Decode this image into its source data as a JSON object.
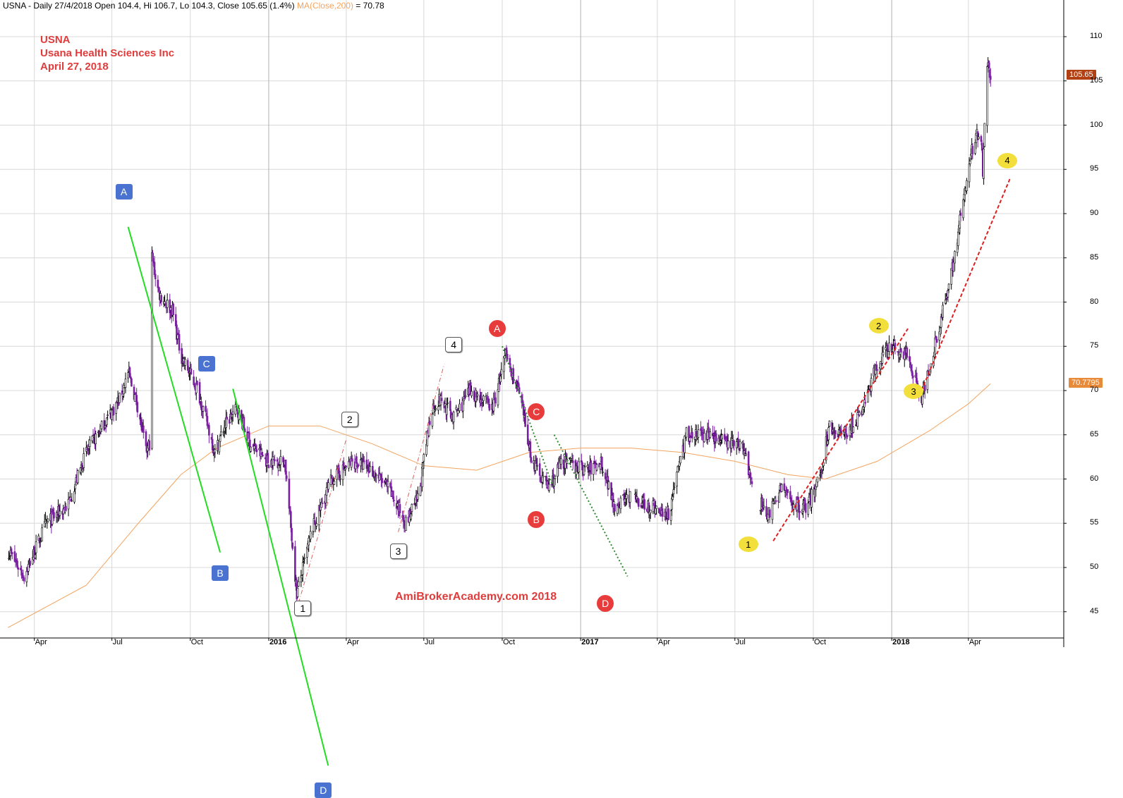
{
  "header": {
    "main_text": "USNA - Daily 27/4/2018 Open 104.4, Hi 106.7, Lo 104.3, Close 105.65 (1.4%)",
    "ma_text": "MA(Close,200)",
    "ma_value_text": " = 70.78"
  },
  "title": {
    "line1": "USNA",
    "line2": "Usana Health Sciences Inc",
    "line3": "April 27, 2018"
  },
  "watermark": "AmiBrokerAcademy.com  2018",
  "price_tags": {
    "close": "105.65",
    "ma": "70.7795"
  },
  "colors": {
    "up_candle": "#000000",
    "down_candle": "#7b1fa2",
    "ma": "#f4a460",
    "green_line": "#22dd22",
    "red_dash": "#e02020",
    "dotted_green": "#2e8b2e",
    "pink_dashdot": "#e06060"
  },
  "y_ticks": [
    "45",
    "50",
    "55",
    "60",
    "65",
    "70",
    "75",
    "80",
    "85",
    "90",
    "95",
    "100",
    "105",
    "110"
  ],
  "x_ticks": [
    {
      "label": "Apr",
      "bold": false
    },
    {
      "label": "Jul",
      "bold": false
    },
    {
      "label": "Oct",
      "bold": false
    },
    {
      "label": "2016",
      "bold": true
    },
    {
      "label": "Apr",
      "bold": false
    },
    {
      "label": "Jul",
      "bold": false
    },
    {
      "label": "Oct",
      "bold": false
    },
    {
      "label": "2017",
      "bold": true
    },
    {
      "label": "Apr",
      "bold": false
    },
    {
      "label": "Jul",
      "bold": false
    },
    {
      "label": "Oct",
      "bold": false
    },
    {
      "label": "2018",
      "bold": true
    },
    {
      "label": "Apr",
      "bold": false
    }
  ],
  "markers": [
    {
      "label": "A",
      "style": "blue"
    },
    {
      "label": "B",
      "style": "blue"
    },
    {
      "label": "C",
      "style": "blue"
    },
    {
      "label": "D",
      "style": "blue"
    },
    {
      "label": "1",
      "style": "wht"
    },
    {
      "label": "2",
      "style": "wht"
    },
    {
      "label": "3",
      "style": "wht"
    },
    {
      "label": "4",
      "style": "wht"
    },
    {
      "label": "A",
      "style": "red"
    },
    {
      "label": "B",
      "style": "red"
    },
    {
      "label": "C",
      "style": "red"
    },
    {
      "label": "D",
      "style": "red"
    },
    {
      "label": "1",
      "style": "yel"
    },
    {
      "label": "2",
      "style": "yel"
    },
    {
      "label": "3",
      "style": "yel"
    },
    {
      "label": "4",
      "style": "yel"
    }
  ],
  "chart_data": {
    "type": "line",
    "title": "USNA",
    "subtitle": "Usana Health Sciences Inc",
    "ylim": [
      42,
      112
    ],
    "grid": true,
    "series": [
      {
        "name": "Close",
        "points": [
          [
            "2015-03-01",
            52
          ],
          [
            "2015-03-20",
            49
          ],
          [
            "2015-04-15",
            55
          ],
          [
            "2015-05-10",
            57
          ],
          [
            "2015-06-01",
            63
          ],
          [
            "2015-06-20",
            66
          ],
          [
            "2015-07-10",
            69
          ],
          [
            "2015-07-20",
            72
          ],
          [
            "2015-08-01",
            68
          ],
          [
            "2015-08-10",
            63
          ],
          [
            "2015-08-14",
            64
          ],
          [
            "2015-08-15",
            86
          ],
          [
            "2015-08-25",
            81
          ],
          [
            "2015-09-10",
            79
          ],
          [
            "2015-09-20",
            74
          ],
          [
            "2015-10-10",
            70
          ],
          [
            "2015-10-30",
            63
          ],
          [
            "2015-11-10",
            66
          ],
          [
            "2015-11-25",
            68
          ],
          [
            "2015-12-10",
            64
          ],
          [
            "2015-12-31",
            62
          ],
          [
            "2016-01-20",
            62
          ],
          [
            "2016-02-03",
            47
          ],
          [
            "2016-02-20",
            54
          ],
          [
            "2016-03-15",
            60
          ],
          [
            "2016-04-10",
            62
          ],
          [
            "2016-05-01",
            61
          ],
          [
            "2016-05-20",
            59
          ],
          [
            "2016-06-10",
            55
          ],
          [
            "2016-06-25",
            58
          ],
          [
            "2016-07-10",
            68
          ],
          [
            "2016-07-20",
            69
          ],
          [
            "2016-08-05",
            67
          ],
          [
            "2016-08-25",
            70
          ],
          [
            "2016-09-20",
            68
          ],
          [
            "2016-10-05",
            74
          ],
          [
            "2016-10-20",
            70
          ],
          [
            "2016-11-05",
            62
          ],
          [
            "2016-11-25",
            59
          ],
          [
            "2016-12-10",
            62
          ],
          [
            "2017-01-10",
            61
          ],
          [
            "2017-01-25",
            62
          ],
          [
            "2017-02-10",
            57
          ],
          [
            "2017-02-25",
            58
          ],
          [
            "2017-03-20",
            57
          ],
          [
            "2017-04-15",
            56
          ],
          [
            "2017-04-22",
            60
          ],
          [
            "2017-05-05",
            65
          ],
          [
            "2017-06-01",
            65
          ],
          [
            "2017-06-20",
            64
          ],
          [
            "2017-07-10",
            64
          ],
          [
            "2017-07-25",
            58
          ],
          [
            "2017-08-10",
            56
          ],
          [
            "2017-08-25",
            59
          ],
          [
            "2017-09-10",
            57
          ],
          [
            "2017-09-25",
            57
          ],
          [
            "2017-10-10",
            61
          ],
          [
            "2017-10-20",
            66
          ],
          [
            "2017-11-05",
            65
          ],
          [
            "2017-11-25",
            67
          ],
          [
            "2017-12-15",
            73
          ],
          [
            "2018-01-01",
            75
          ],
          [
            "2018-01-20",
            74
          ],
          [
            "2018-02-05",
            69
          ],
          [
            "2018-02-20",
            75
          ],
          [
            "2018-03-10",
            82
          ],
          [
            "2018-03-20",
            88
          ],
          [
            "2018-04-05",
            97
          ],
          [
            "2018-04-15",
            100
          ],
          [
            "2018-04-18",
            95
          ],
          [
            "2018-04-22",
            107
          ],
          [
            "2018-04-27",
            105.65
          ]
        ]
      },
      {
        "name": "MA(Close,200)",
        "points": [
          [
            "2015-03-01",
            43.2
          ],
          [
            "2015-06-01",
            48
          ],
          [
            "2015-08-01",
            55
          ],
          [
            "2015-09-20",
            60.5
          ],
          [
            "2015-11-01",
            63.5
          ],
          [
            "2016-01-01",
            66
          ],
          [
            "2016-03-01",
            66
          ],
          [
            "2016-05-01",
            64
          ],
          [
            "2016-07-01",
            61.5
          ],
          [
            "2016-09-01",
            61
          ],
          [
            "2016-11-01",
            63
          ],
          [
            "2017-01-01",
            63.5
          ],
          [
            "2017-03-01",
            63.5
          ],
          [
            "2017-05-01",
            63
          ],
          [
            "2017-07-01",
            62
          ],
          [
            "2017-09-01",
            60.5
          ],
          [
            "2017-10-15",
            60
          ],
          [
            "2017-12-15",
            62
          ],
          [
            "2018-02-15",
            65.5
          ],
          [
            "2018-04-01",
            68.5
          ],
          [
            "2018-04-27",
            70.78
          ]
        ]
      }
    ]
  }
}
